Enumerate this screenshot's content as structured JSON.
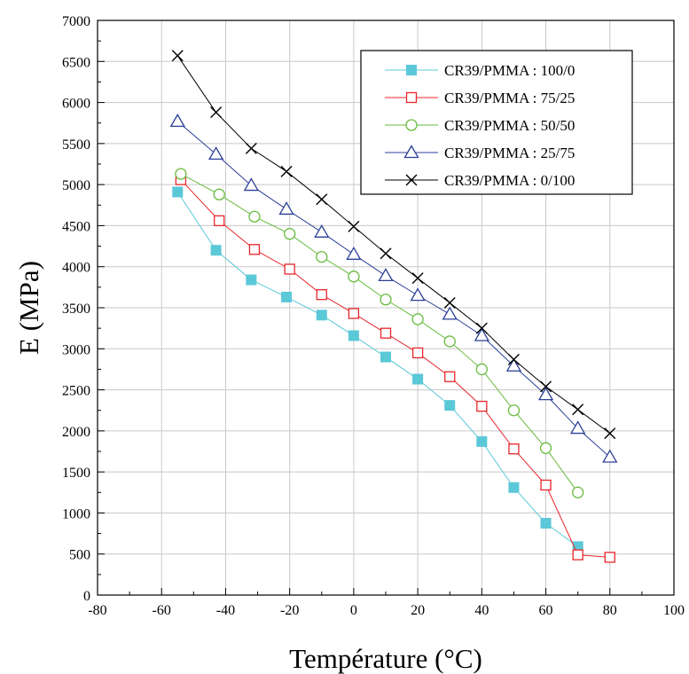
{
  "chart_data": {
    "type": "line",
    "title": "",
    "xlabel": "Température (°C)",
    "ylabel": "E (MPa)",
    "xlim": [
      -80,
      100
    ],
    "ylim": [
      0,
      7000
    ],
    "xticks": [
      -80,
      -60,
      -40,
      -20,
      0,
      20,
      40,
      60,
      80,
      100
    ],
    "yticks": [
      0,
      500,
      1000,
      1500,
      2000,
      2500,
      3000,
      3500,
      4000,
      4500,
      5000,
      5500,
      6000,
      6500,
      7000
    ],
    "grid": true,
    "legend_position": "top-right",
    "series": [
      {
        "name": "CR39/PMMA : 100/0",
        "color": "#5bc8d8",
        "marker": "filled-square",
        "x": [
          -55,
          -43,
          -32,
          -21,
          -10,
          0,
          10,
          20,
          30,
          40,
          50,
          60,
          70
        ],
        "y": [
          4910,
          4200,
          3840,
          3630,
          3410,
          3160,
          2900,
          2630,
          2310,
          1870,
          1310,
          875,
          590
        ]
      },
      {
        "name": "CR39/PMMA : 75/25",
        "color": "#e8262b",
        "marker": "open-square",
        "x": [
          -54,
          -42,
          -31,
          -20,
          -10,
          0,
          10,
          20,
          30,
          40,
          50,
          60,
          70,
          80
        ],
        "y": [
          5060,
          4560,
          4210,
          3970,
          3660,
          3430,
          3190,
          2950,
          2660,
          2300,
          1780,
          1340,
          490,
          460
        ]
      },
      {
        "name": "CR39/PMMA : 50/50",
        "color": "#66bb3c",
        "marker": "open-circle",
        "x": [
          -54,
          -42,
          -31,
          -20,
          -10,
          0,
          10,
          20,
          30,
          40,
          50,
          60,
          70
        ],
        "y": [
          5130,
          4880,
          4610,
          4400,
          4120,
          3880,
          3600,
          3360,
          3090,
          2750,
          2250,
          1790,
          1250
        ]
      },
      {
        "name": "CR39/PMMA : 25/75",
        "color": "#2b3f97",
        "marker": "open-triangle",
        "x": [
          -55,
          -43,
          -32,
          -21,
          -10,
          0,
          10,
          20,
          30,
          40,
          50,
          60,
          70,
          80
        ],
        "y": [
          5770,
          5370,
          4990,
          4700,
          4420,
          4150,
          3890,
          3650,
          3420,
          3160,
          2790,
          2440,
          2030,
          1680
        ]
      },
      {
        "name": "CR39/PMMA : 0/100",
        "color": "#000000",
        "marker": "cross",
        "x": [
          -55,
          -43,
          -32,
          -21,
          -10,
          0,
          10,
          20,
          30,
          40,
          50,
          60,
          70,
          80
        ],
        "y": [
          6570,
          5880,
          5440,
          5160,
          4820,
          4490,
          4160,
          3860,
          3560,
          3250,
          2870,
          2540,
          2260,
          1970
        ]
      }
    ]
  }
}
